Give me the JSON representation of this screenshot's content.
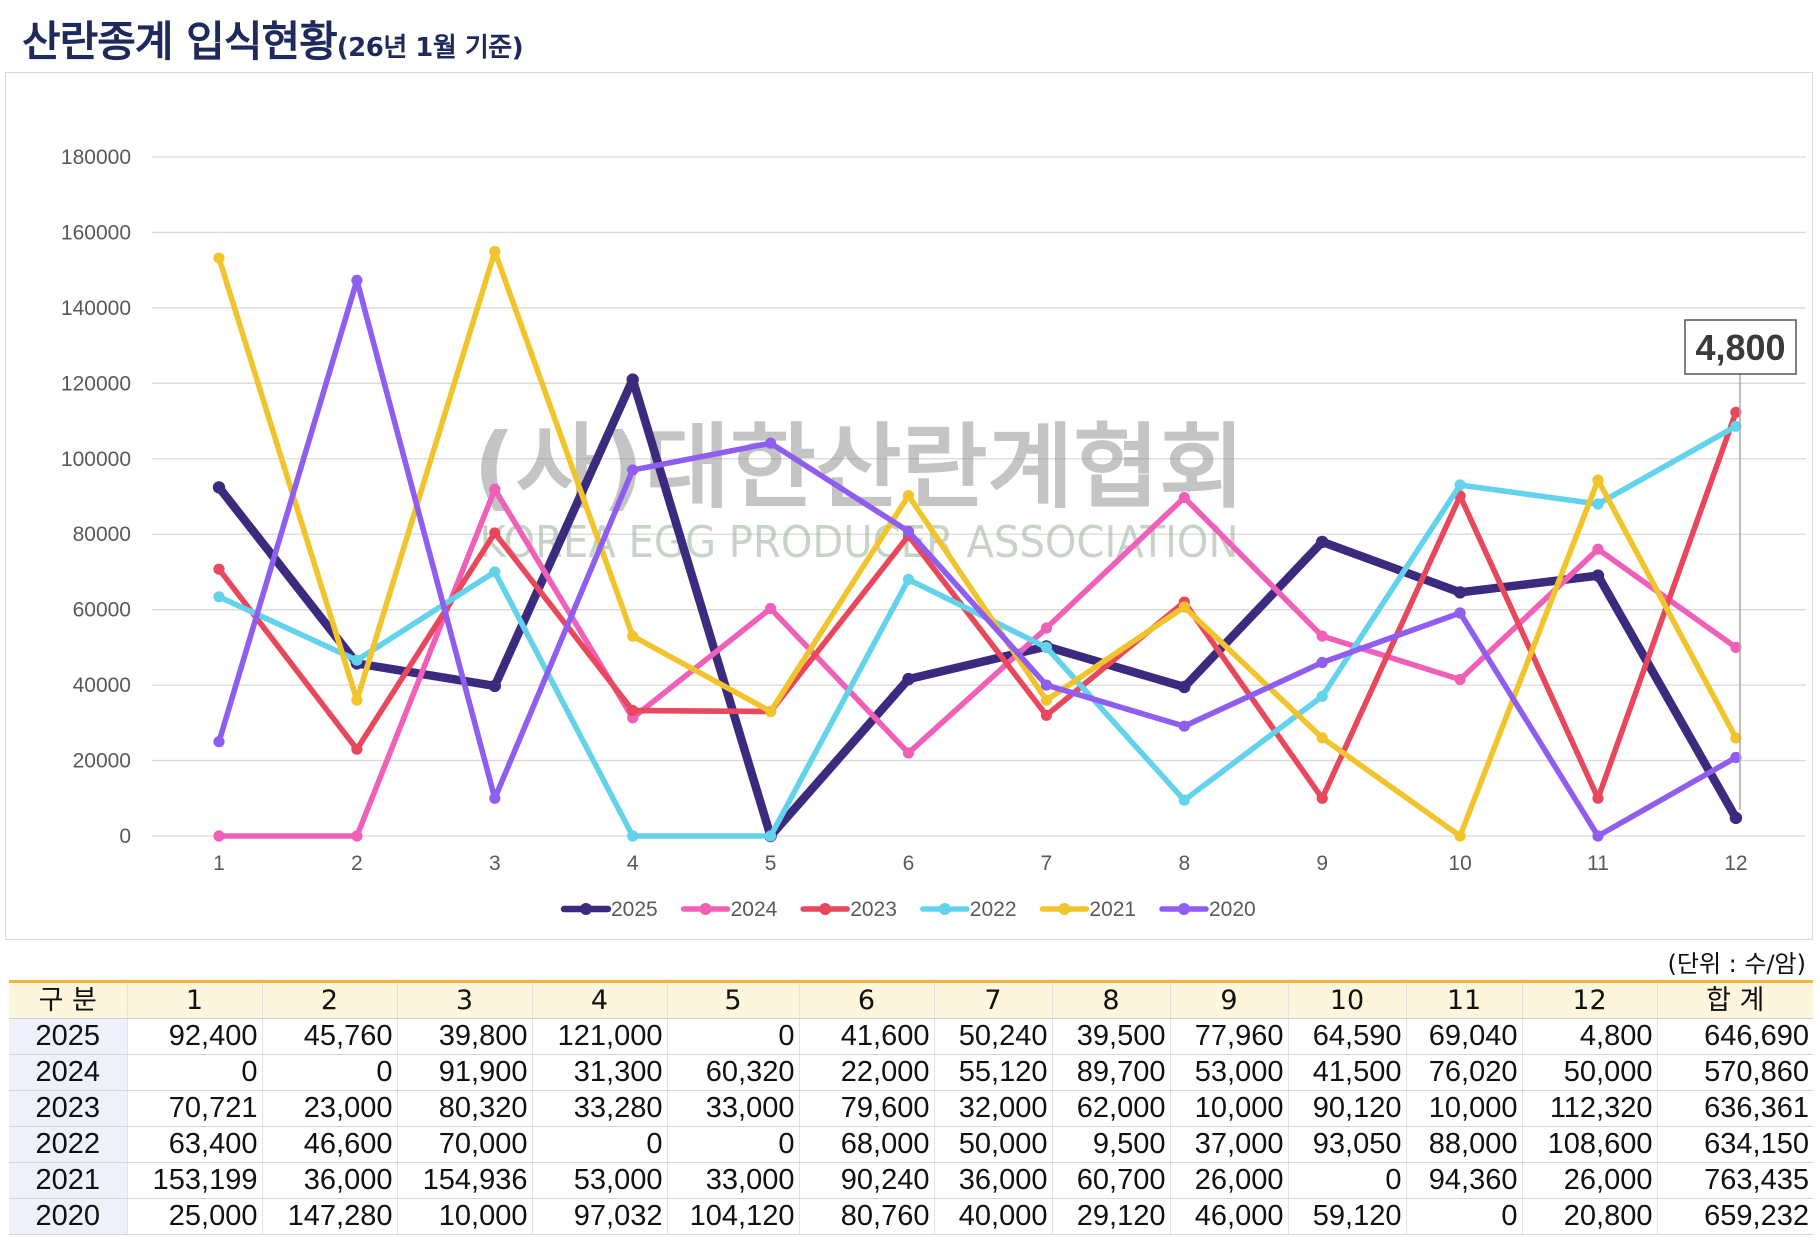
{
  "page": {
    "title": "산란종계 입식현황",
    "subtitle": "(26년 1월 기준)"
  },
  "watermark": {
    "name": "(사)대한산란계협회",
    "english": "KOREA EGG PRODUCER ASSOCIATION"
  },
  "chart_data": {
    "type": "line",
    "categories": [
      "1",
      "2",
      "3",
      "4",
      "5",
      "6",
      "7",
      "8",
      "9",
      "10",
      "11",
      "12"
    ],
    "ylim": [
      0,
      180000
    ],
    "yticks": [
      0,
      20000,
      40000,
      60000,
      80000,
      100000,
      120000,
      140000,
      160000,
      180000
    ],
    "grid": true,
    "legend_position": "bottom",
    "series": [
      {
        "name": "2025",
        "color": "#3b2a7e",
        "values": [
          92400,
          45760,
          39800,
          121000,
          0,
          41600,
          50240,
          39500,
          77960,
          64590,
          69040,
          4800
        ]
      },
      {
        "name": "2024",
        "color": "#f060b8",
        "values": [
          0,
          0,
          91900,
          31300,
          60320,
          22000,
          55120,
          89700,
          53000,
          41500,
          76020,
          50000
        ]
      },
      {
        "name": "2023",
        "color": "#e8475c",
        "values": [
          70721,
          23000,
          80320,
          33280,
          33000,
          79600,
          32000,
          62000,
          10000,
          90120,
          10000,
          112320
        ]
      },
      {
        "name": "2022",
        "color": "#63d3ec",
        "values": [
          63400,
          46600,
          70000,
          0,
          0,
          68000,
          50000,
          9500,
          37000,
          93050,
          88000,
          108600
        ]
      },
      {
        "name": "2021",
        "color": "#f1c42c",
        "values": [
          153199,
          36000,
          154936,
          53000,
          33000,
          90240,
          36000,
          60700,
          26000,
          0,
          94360,
          26000
        ]
      },
      {
        "name": "2020",
        "color": "#8f5def",
        "values": [
          25000,
          147280,
          10000,
          97032,
          104120,
          80760,
          40000,
          29120,
          46000,
          59120,
          0,
          20800
        ]
      }
    ],
    "annotation": {
      "label": "4,800",
      "series_index": 0,
      "category_index": 11
    }
  },
  "table": {
    "unit": "(단위 : 수/암)",
    "headers": [
      "구 분",
      "1",
      "2",
      "3",
      "4",
      "5",
      "6",
      "7",
      "8",
      "9",
      "10",
      "11",
      "12",
      "합 계"
    ],
    "rows": [
      {
        "year": "2025",
        "values": [
          "92,400",
          "45,760",
          "39,800",
          "121,000",
          "0",
          "41,600",
          "50,240",
          "39,500",
          "77,960",
          "64,590",
          "69,040",
          "4,800"
        ],
        "total": "646,690"
      },
      {
        "year": "2024",
        "values": [
          "0",
          "0",
          "91,900",
          "31,300",
          "60,320",
          "22,000",
          "55,120",
          "89,700",
          "53,000",
          "41,500",
          "76,020",
          "50,000"
        ],
        "total": "570,860"
      },
      {
        "year": "2023",
        "values": [
          "70,721",
          "23,000",
          "80,320",
          "33,280",
          "33,000",
          "79,600",
          "32,000",
          "62,000",
          "10,000",
          "90,120",
          "10,000",
          "112,320"
        ],
        "total": "636,361"
      },
      {
        "year": "2022",
        "values": [
          "63,400",
          "46,600",
          "70,000",
          "0",
          "0",
          "68,000",
          "50,000",
          "9,500",
          "37,000",
          "93,050",
          "88,000",
          "108,600"
        ],
        "total": "634,150"
      },
      {
        "year": "2021",
        "values": [
          "153,199",
          "36,000",
          "154,936",
          "53,000",
          "33,000",
          "90,240",
          "36,000",
          "60,700",
          "26,000",
          "0",
          "94,360",
          "26,000"
        ],
        "total": "763,435"
      },
      {
        "year": "2020",
        "values": [
          "25,000",
          "147,280",
          "10,000",
          "97,032",
          "104,120",
          "80,760",
          "40,000",
          "29,120",
          "46,000",
          "59,120",
          "0",
          "20,800"
        ],
        "total": "659,232"
      }
    ]
  }
}
